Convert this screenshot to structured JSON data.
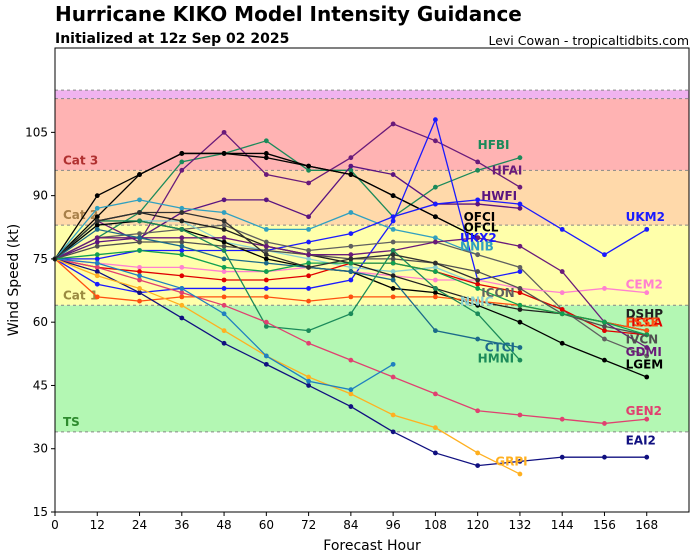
{
  "header": {
    "title": "Hurricane KIKO Model Intensity Guidance",
    "subtitle": "Initialized at 12z Sep 02 2025",
    "credit": "Levi Cowan - tropicaltidbits.com"
  },
  "chart_data": {
    "type": "line",
    "xlabel": "Forecast Hour",
    "ylabel": "Wind Speed (kt)",
    "xlim": [
      0,
      180
    ],
    "ylim": [
      15,
      125
    ],
    "xticks": [
      0,
      12,
      24,
      36,
      48,
      60,
      72,
      84,
      96,
      108,
      120,
      132,
      144,
      156,
      168
    ],
    "yticks": [
      15,
      30,
      45,
      60,
      75,
      90,
      105
    ],
    "categories": [
      {
        "label": "TS",
        "from": 34,
        "to": 64,
        "color": "#b3f7b3",
        "label_color": "#2e8b2e"
      },
      {
        "label": "Cat 1",
        "from": 64,
        "to": 83,
        "color": "#ffffaa",
        "label_color": "#9a8a40"
      },
      {
        "label": "Cat 2",
        "from": 83,
        "to": 96,
        "color": "#ffd9aa",
        "label_color": "#a8804a"
      },
      {
        "label": "Cat 3",
        "from": 96,
        "to": 113,
        "color": "#ffb3b3",
        "label_color": "#b03030"
      },
      {
        "label": "",
        "from": 113,
        "to": 115,
        "color": "#f0b3f0",
        "label_color": "#000000"
      }
    ],
    "series": [
      {
        "name": "HFBI",
        "color": "#1b8a5a",
        "x": [
          0,
          12,
          24,
          36,
          48,
          60,
          72,
          84,
          96,
          108,
          120,
          132
        ],
        "y": [
          75,
          80,
          86,
          98,
          100,
          103,
          96,
          96,
          85,
          92,
          96,
          99
        ]
      },
      {
        "name": "HFAI",
        "color": "#6a1b7a",
        "x": [
          0,
          12,
          24,
          36,
          48,
          60,
          72,
          84,
          96,
          108,
          120,
          132
        ],
        "y": [
          75,
          84,
          79,
          96,
          105,
          95,
          93,
          99,
          107,
          103,
          98,
          92
        ]
      },
      {
        "name": "HWFI",
        "color": "#5a1480",
        "x": [
          0,
          12,
          24,
          36,
          48,
          60,
          72,
          84,
          96,
          108,
          120,
          132
        ],
        "y": [
          75,
          79,
          80,
          86,
          89,
          89,
          85,
          97,
          95,
          88,
          88,
          87
        ]
      },
      {
        "name": "OFCI",
        "color": "#000000",
        "x": [
          0,
          12,
          24,
          36,
          48,
          60,
          72,
          84,
          96,
          108,
          120
        ],
        "y": [
          75,
          90,
          95,
          100,
          100,
          100,
          97,
          95,
          90,
          85,
          80
        ]
      },
      {
        "name": "OFCL",
        "color": "#000000",
        "x": [
          0,
          12,
          24,
          36,
          48,
          60,
          72,
          84,
          96,
          108,
          120
        ],
        "y": [
          75,
          85,
          95,
          100,
          100,
          99,
          97,
          95,
          90,
          85,
          80
        ]
      },
      {
        "name": "UKX2",
        "color": "#1a1aff",
        "x": [
          0,
          12,
          24,
          36,
          48,
          60,
          72,
          84,
          96,
          108,
          120,
          132
        ],
        "y": [
          75,
          69,
          67,
          68,
          68,
          68,
          68,
          70,
          84,
          108,
          70,
          72
        ]
      },
      {
        "name": "NNIB",
        "color": "#30a0c0",
        "x": [
          0,
          12,
          24,
          36,
          48,
          60,
          72,
          84,
          96,
          108,
          120
        ],
        "y": [
          75,
          87,
          89,
          87,
          86,
          82,
          82,
          86,
          82,
          80,
          76
        ]
      },
      {
        "name": "UKM2",
        "color": "#1a1aff",
        "x": [
          0,
          12,
          24,
          36,
          48,
          60,
          72,
          84,
          96,
          108,
          120,
          132,
          144,
          156,
          168
        ],
        "y": [
          75,
          75,
          77,
          77,
          77,
          77,
          79,
          81,
          85,
          88,
          89,
          88,
          82,
          76,
          82
        ]
      },
      {
        "name": "ICON",
        "color": "#606060",
        "x": [
          0,
          12,
          24,
          36,
          48,
          60,
          72,
          84,
          96,
          108,
          120,
          132,
          144,
          156,
          168
        ],
        "y": [
          75,
          80,
          81,
          82,
          83,
          79,
          77,
          78,
          79,
          79,
          76,
          73,
          63,
          56,
          52
        ]
      },
      {
        "name": "NNIC",
        "color": "#8ad0d0",
        "x": [
          0,
          12,
          24,
          36,
          48,
          60,
          72,
          84,
          96,
          108,
          120
        ],
        "y": [
          75,
          83,
          84,
          84,
          79,
          77,
          75,
          73,
          72,
          73,
          69
        ]
      },
      {
        "name": "CEM2",
        "color": "#ff80d0",
        "x": [
          0,
          12,
          24,
          36,
          48,
          60,
          72,
          84,
          96,
          108,
          120,
          132,
          144,
          156,
          168
        ],
        "y": [
          75,
          74,
          73,
          73,
          72,
          72,
          73,
          72,
          71,
          70,
          70,
          68,
          67,
          68,
          67
        ]
      },
      {
        "name": "DSHP",
        "color": "#202020",
        "x": [
          0,
          12,
          24,
          36,
          48,
          60,
          72,
          84,
          96,
          108,
          120,
          132,
          144,
          156,
          168
        ],
        "y": [
          75,
          84,
          86,
          84,
          82,
          78,
          76,
          74,
          71,
          68,
          65,
          63,
          62,
          60,
          58
        ]
      },
      {
        "name": "LGEM",
        "color": "#000000",
        "x": [
          0,
          12,
          24,
          36,
          48,
          60,
          72,
          84,
          96,
          108,
          120,
          132,
          144,
          156,
          168
        ],
        "y": [
          75,
          83,
          84,
          82,
          79,
          75,
          73,
          72,
          68,
          67,
          64,
          60,
          55,
          51,
          47
        ]
      },
      {
        "name": "HCCA",
        "color": "#e00000",
        "x": [
          0,
          12,
          24,
          36,
          48,
          60,
          72,
          84,
          96,
          108,
          120,
          132,
          144,
          156,
          168
        ],
        "y": [
          75,
          73,
          72,
          71,
          70,
          70,
          71,
          74,
          74,
          72,
          69,
          67,
          63,
          58,
          57
        ]
      },
      {
        "name": "FSSE",
        "color": "#ff5010",
        "x": [
          0,
          12,
          24,
          36,
          48,
          60,
          72,
          84,
          96,
          108,
          120,
          132,
          144,
          156,
          168
        ],
        "y": [
          75,
          66,
          65,
          66,
          66,
          66,
          65,
          66,
          66,
          66,
          65,
          64,
          62,
          60,
          58
        ]
      },
      {
        "name": "IVCN",
        "color": "#505050",
        "x": [
          0,
          12,
          24,
          36,
          48,
          60,
          72,
          84,
          96,
          108,
          120,
          132,
          144,
          156,
          168
        ],
        "y": [
          75,
          78,
          79,
          79,
          78,
          77,
          76,
          75,
          75,
          74,
          72,
          68,
          62,
          59,
          57
        ]
      },
      {
        "name": "GDMI",
        "color": "#6a1b7a",
        "x": [
          0,
          12,
          24,
          36,
          48,
          60,
          72,
          84,
          96,
          108,
          120,
          132,
          144,
          156,
          168
        ],
        "y": [
          75,
          80,
          80,
          80,
          80,
          78,
          76,
          76,
          77,
          79,
          80,
          78,
          72,
          60,
          54
        ]
      },
      {
        "name": "CTCI",
        "color": "#1b6a8a",
        "x": [
          0,
          12,
          24,
          36,
          48,
          60,
          72,
          84,
          96,
          108,
          120,
          132
        ],
        "y": [
          75,
          82,
          80,
          78,
          75,
          74,
          73,
          72,
          70,
          58,
          56,
          54
        ]
      },
      {
        "name": "HMNI",
        "color": "#1b8a5a",
        "x": [
          0,
          12,
          24,
          36,
          48,
          60,
          72,
          84,
          96,
          108,
          120,
          132
        ],
        "y": [
          75,
          84,
          84,
          82,
          77,
          59,
          58,
          62,
          77,
          68,
          62,
          51
        ]
      },
      {
        "name": "GEN2",
        "color": "#e04070",
        "x": [
          0,
          12,
          24,
          36,
          48,
          60,
          72,
          84,
          96,
          108,
          120,
          132,
          144,
          156,
          168
        ],
        "y": [
          75,
          73,
          70,
          67,
          64,
          60,
          55,
          51,
          47,
          43,
          39,
          38,
          37,
          36,
          37
        ]
      },
      {
        "name": "EAI2",
        "color": "#101080",
        "x": [
          0,
          12,
          24,
          36,
          48,
          60,
          72,
          84,
          96,
          108,
          120,
          132,
          144,
          156,
          168
        ],
        "y": [
          75,
          72,
          67,
          61,
          55,
          50,
          45,
          40,
          34,
          29,
          26,
          27,
          28,
          28,
          28
        ]
      },
      {
        "name": "GRPI",
        "color": "#ffb020",
        "x": [
          0,
          12,
          24,
          36,
          48,
          60,
          72,
          84,
          96,
          108,
          120,
          132
        ],
        "y": [
          75,
          71,
          68,
          64,
          58,
          52,
          47,
          43,
          38,
          35,
          29,
          24
        ]
      },
      {
        "name": "",
        "color": "#2080c0",
        "x": [
          0,
          12,
          24,
          36,
          48,
          60,
          72,
          84,
          96
        ],
        "y": [
          75,
          74,
          71,
          68,
          62,
          52,
          46,
          44,
          50
        ]
      },
      {
        "name": "",
        "color": "#10a050",
        "x": [
          0,
          12,
          24,
          36,
          48,
          60,
          72,
          84,
          96,
          108,
          120,
          132,
          144,
          156,
          168
        ],
        "y": [
          75,
          76,
          77,
          76,
          73,
          72,
          74,
          74,
          74,
          72,
          68,
          64,
          62,
          60,
          57
        ]
      },
      {
        "name": "",
        "color": "#303030",
        "x": [
          0,
          12,
          24,
          36,
          48,
          60,
          72,
          84,
          96,
          108,
          120
        ],
        "y": [
          75,
          84,
          86,
          86,
          84,
          76,
          73,
          75,
          76,
          74,
          70
        ]
      }
    ],
    "labels": [
      {
        "series": "HFBI",
        "x": 120,
        "y": 101
      },
      {
        "series": "HFAI",
        "x": 124,
        "y": 95
      },
      {
        "series": "HWFI",
        "x": 121,
        "y": 89
      },
      {
        "series": "OFCI",
        "x": 116,
        "y": 84
      },
      {
        "series": "OFCL",
        "x": 116,
        "y": 81.5
      },
      {
        "series": "UKX2",
        "x": 115,
        "y": 79
      },
      {
        "series": "NNIB",
        "x": 115,
        "y": 77
      },
      {
        "series": "UKM2",
        "x": 162,
        "y": 84
      },
      {
        "series": "ICON",
        "x": 121,
        "y": 66
      },
      {
        "series": "NNIC",
        "x": 115,
        "y": 64
      },
      {
        "series": "CEM2",
        "x": 162,
        "y": 68
      },
      {
        "series": "DSHP",
        "x": 162,
        "y": 61
      },
      {
        "series": "HCCA",
        "x": 162,
        "y": 59
      },
      {
        "series": "FSSE",
        "x": 162,
        "y": 59
      },
      {
        "series": "IVCN",
        "x": 162,
        "y": 55
      },
      {
        "series": "GDMI",
        "x": 162,
        "y": 52
      },
      {
        "series": "LGEM",
        "x": 162,
        "y": 49
      },
      {
        "series": "CTCI",
        "x": 122,
        "y": 53
      },
      {
        "series": "HMNI",
        "x": 120,
        "y": 50.5
      },
      {
        "series": "GEN2",
        "x": 162,
        "y": 38
      },
      {
        "series": "EAI2",
        "x": 162,
        "y": 31
      },
      {
        "series": "GRPI",
        "x": 125,
        "y": 26
      }
    ]
  }
}
